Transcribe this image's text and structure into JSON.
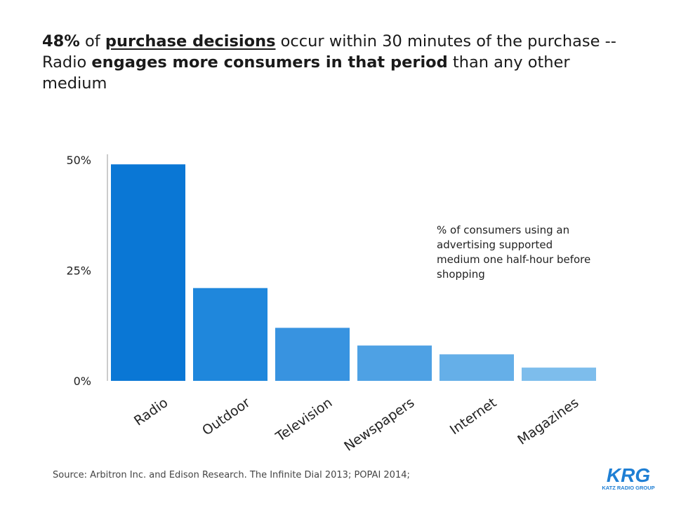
{
  "headline": {
    "part1_bold": "48%",
    "part2": " of ",
    "part3_bold_underline": "purchase decisions",
    "part4": " occur within 30 minutes of the purchase -- Radio ",
    "part5_bold": "engages more consumers in that period",
    "part6": " than any other medium"
  },
  "chart_data": {
    "type": "bar",
    "categories": [
      "Radio",
      "Outdoor",
      "Television",
      "Newspapers",
      "Internet",
      "Magazines"
    ],
    "values": [
      49,
      21,
      12,
      8,
      6,
      3
    ],
    "colors": [
      "#0a77d5",
      "#1f87dc",
      "#3893e0",
      "#4ea1e4",
      "#65afe8",
      "#7dbdec"
    ],
    "ylim": [
      0,
      50
    ],
    "yticks": [
      "0%",
      "25%",
      "50%"
    ],
    "annotation": "% of consumers using an advertising supported medium one half-hour before shopping",
    "grid": false,
    "legend": "none"
  },
  "source": "Source: Arbitron Inc. and Edison Research. The Infinite Dial 2013;  POPAI 2014;",
  "logo": {
    "text": "KRG",
    "subtext": "KATZ RADIO GROUP",
    "color": "#1f7fd4"
  }
}
